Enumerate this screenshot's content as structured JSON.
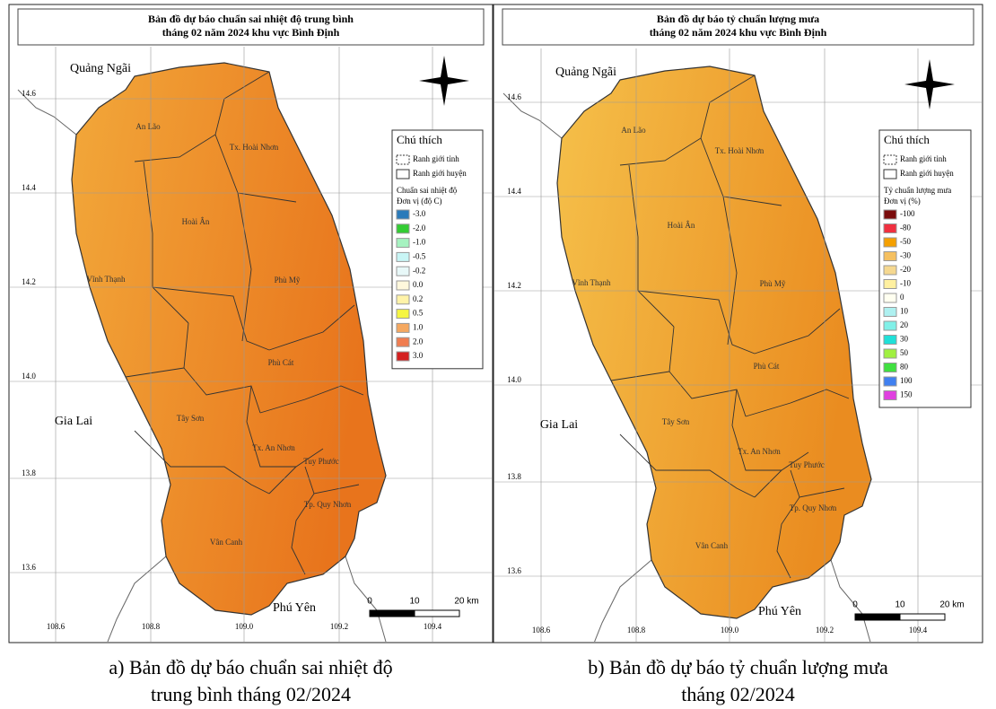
{
  "maps": [
    {
      "title": [
        "Bản đồ dự báo chuẩn sai nhiệt độ trung bình",
        "tháng 02 năm 2024 khu vực Bình Định"
      ],
      "neighbors": [
        "Quảng Ngãi",
        "Gia Lai",
        "Phú Yên"
      ],
      "districts": [
        "An Lão",
        "Tx. Hoài Nhơn",
        "Hoài Ân",
        "Vĩnh Thạnh",
        "Phù Mỹ",
        "Phù Cát",
        "Tây Sơn",
        "Tx. An Nhơn",
        "Tuy Phước",
        "Tp. Quy Nhơn",
        "Vân Canh"
      ],
      "lat_ticks": [
        "14.6",
        "14.4",
        "14.2",
        "14.0",
        "13.8",
        "13.6"
      ],
      "lon_ticks": [
        "108.6",
        "108.8",
        "109.0",
        "109.2",
        "109.4"
      ],
      "scale": [
        "0",
        "10",
        "20 km"
      ],
      "legend": {
        "title": "Chú thích",
        "boundaries": [
          "Ranh giới tỉnh",
          "Ranh giới huyện"
        ],
        "heading": [
          "Chuẩn sai nhiệt độ",
          "Đơn vị (độ C)"
        ],
        "items": [
          {
            "label": "-3.0",
            "color": "#2b7bba"
          },
          {
            "label": "-2.0",
            "color": "#33cc33"
          },
          {
            "label": "-1.0",
            "color": "#a6f2c0"
          },
          {
            "label": "-0.5",
            "color": "#c8f5f5"
          },
          {
            "label": "-0.2",
            "color": "#e8f8f8"
          },
          {
            "label": "0.0",
            "color": "#fff8dc"
          },
          {
            "label": "0.2",
            "color": "#fff3a8"
          },
          {
            "label": "0.5",
            "color": "#f5f542"
          },
          {
            "label": "1.0",
            "color": "#f5a860"
          },
          {
            "label": "2.0",
            "color": "#f07d50"
          },
          {
            "label": "3.0",
            "color": "#d42020"
          }
        ]
      },
      "fill": [
        "#f2a83a",
        "#e8741c"
      ],
      "caption": [
        "a) Bản đồ dự báo chuẩn sai nhiệt độ",
        "trung bình tháng 02/2024"
      ]
    },
    {
      "title": [
        "Bản đồ dự báo tỷ chuẩn lượng mưa",
        "tháng 02 năm 2024 khu vực Bình Định"
      ],
      "neighbors": [
        "Quảng Ngãi",
        "Gia Lai",
        "Phú Yên"
      ],
      "districts": [
        "An Lão",
        "Tx. Hoài Nhơn",
        "Hoài Ân",
        "Vĩnh Thạnh",
        "Phù Mỹ",
        "Phù Cát",
        "Tây Sơn",
        "Tx. An Nhơn",
        "Tuy Phước",
        "Tp. Quy Nhơn",
        "Vân Canh"
      ],
      "lat_ticks": [
        "14.6",
        "14.4",
        "14.2",
        "14.0",
        "13.8",
        "13.6"
      ],
      "lon_ticks": [
        "108.6",
        "108.8",
        "109.0",
        "109.2",
        "109.4"
      ],
      "scale": [
        "0",
        "10",
        "20 km"
      ],
      "legend": {
        "title": "Chú thích",
        "boundaries": [
          "Ranh giới tỉnh",
          "Ranh giới huyện"
        ],
        "heading": [
          "Tỷ chuẩn lượng mưa",
          "Đơn vị (%)"
        ],
        "items": [
          {
            "label": "-100",
            "color": "#7a0b0b"
          },
          {
            "label": "-80",
            "color": "#f03040"
          },
          {
            "label": "-50",
            "color": "#f5a000"
          },
          {
            "label": "-30",
            "color": "#f5c060"
          },
          {
            "label": "-20",
            "color": "#f5d890"
          },
          {
            "label": "-10",
            "color": "#fff0a0"
          },
          {
            "label": "0",
            "color": "#fffff0"
          },
          {
            "label": "10",
            "color": "#aef0f0"
          },
          {
            "label": "20",
            "color": "#80f0e8"
          },
          {
            "label": "30",
            "color": "#20e0d8"
          },
          {
            "label": "50",
            "color": "#a0f040"
          },
          {
            "label": "80",
            "color": "#40e040"
          },
          {
            "label": "100",
            "color": "#4080f0"
          },
          {
            "label": "150",
            "color": "#e040e0"
          }
        ]
      },
      "fill": [
        "#f5c04a",
        "#ea8c20"
      ],
      "caption": [
        "b) Bản đồ dự báo tỷ chuẩn lượng mưa",
        "tháng 02/2024"
      ]
    }
  ]
}
